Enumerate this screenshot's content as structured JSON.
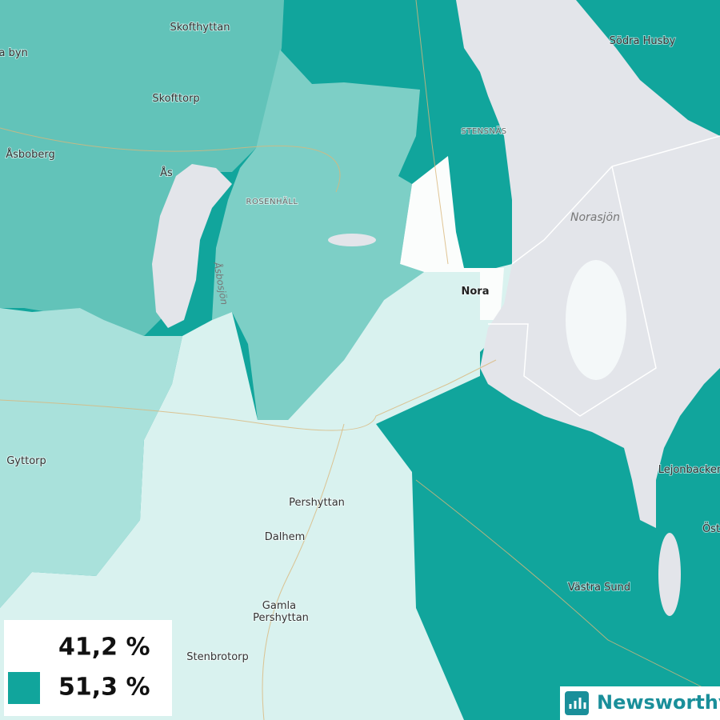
{
  "places": [
    {
      "name": "Skofthyttan"
    },
    {
      "name": "ra byn"
    },
    {
      "name": "Skofttorp"
    },
    {
      "name": "Åsboberg"
    },
    {
      "name": "Ås"
    },
    {
      "name": "ROSENHÄLL"
    },
    {
      "name": "STENSNÄS"
    },
    {
      "name": "Södra Husby"
    },
    {
      "name": "Nora"
    },
    {
      "name": "Gyttorp"
    },
    {
      "name": "Pershyttan"
    },
    {
      "name": "Dalhem"
    },
    {
      "lines": [
        "Gamla",
        "Pershyttan"
      ]
    },
    {
      "name": "Stenbrotorp"
    },
    {
      "name": "Västra Sund"
    },
    {
      "name": "Lejonbacker"
    },
    {
      "name": "Öst"
    }
  ],
  "lakes": [
    {
      "name": "Norasjön"
    },
    {
      "name": "Åsbosjön"
    }
  ],
  "legend": [
    {
      "label": "41,2 %",
      "color": "#ffffff"
    },
    {
      "label": "51,3 %",
      "color": "#11a59c"
    }
  ],
  "logo": "Newsworthy"
}
